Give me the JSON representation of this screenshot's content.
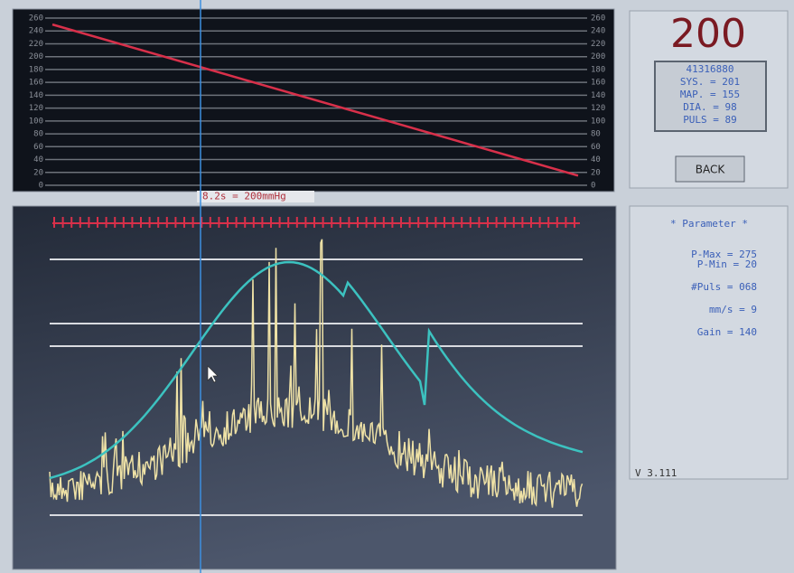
{
  "pressure_chart": {
    "ylim": [
      0,
      260
    ],
    "yticks": [
      0,
      20,
      40,
      60,
      80,
      100,
      120,
      140,
      160,
      180,
      200,
      220,
      240,
      260
    ],
    "line": {
      "start": 250,
      "end": 15
    },
    "cursor_label": "8.2s = 200mmHg"
  },
  "readout": {
    "pressure": "200",
    "id": "41316880",
    "lines": [
      "SYS. = 201",
      "MAP. = 155",
      "DIA. = 98",
      "PULS = 89"
    ]
  },
  "back_button": "BACK",
  "parameters": {
    "title": "* Parameter *",
    "rows": [
      "P-Max = 275",
      "P-Min = 20",
      "#Puls = 068",
      "mm/s = 9",
      "Gain = 140"
    ]
  },
  "version": "V 3.111"
}
